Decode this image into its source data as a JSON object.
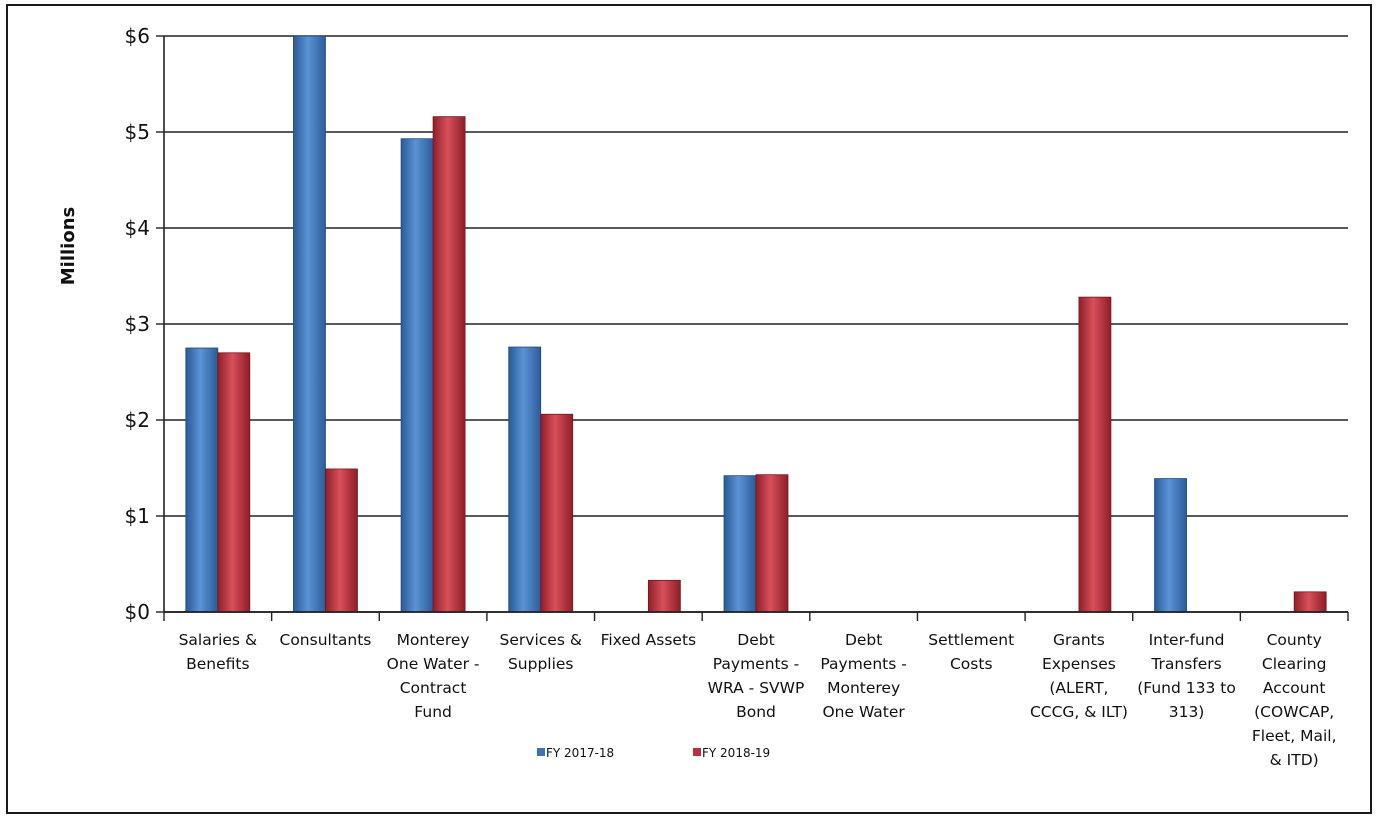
{
  "chart_data": {
    "type": "bar",
    "title": "",
    "xlabel": "",
    "ylabel": "Millions",
    "ylim": [
      0,
      6
    ],
    "yticks": [
      0,
      1,
      2,
      3,
      4,
      5,
      6
    ],
    "ytick_labels": [
      "$0",
      "$1",
      "$2",
      "$3",
      "$4",
      "$5",
      "$6"
    ],
    "grid": true,
    "legend": "bottom-center",
    "categories": [
      [
        "Salaries &",
        "Benefits"
      ],
      [
        "Consultants"
      ],
      [
        "Monterey",
        "One Water -",
        "Contract",
        "Fund"
      ],
      [
        "Services &",
        "Supplies"
      ],
      [
        "Fixed Assets"
      ],
      [
        "Debt",
        "Payments -",
        "WRA - SVWP",
        "Bond"
      ],
      [
        "Debt",
        "Payments -",
        "Monterey",
        "One Water"
      ],
      [
        "Settlement",
        "Costs"
      ],
      [
        "Grants",
        "Expenses",
        "(ALERT,",
        "CCCG, & ILT)"
      ],
      [
        "Inter-fund",
        "Transfers",
        "(Fund 133 to",
        "313)"
      ],
      [
        "County",
        "Clearing",
        "Account",
        "(COWCAP,",
        "Fleet, Mail,",
        "& ITD)"
      ]
    ],
    "series": [
      {
        "name": "FY 2017-18",
        "color": "#3d74b8",
        "values": [
          2.75,
          6.0,
          4.93,
          2.76,
          0,
          1.42,
          0,
          0,
          0,
          1.39,
          0
        ]
      },
      {
        "name": "FY 2018-19",
        "color": "#b8323c",
        "values": [
          2.7,
          1.49,
          5.16,
          2.06,
          0.33,
          1.43,
          0,
          0,
          3.28,
          0,
          0.21
        ]
      }
    ]
  }
}
